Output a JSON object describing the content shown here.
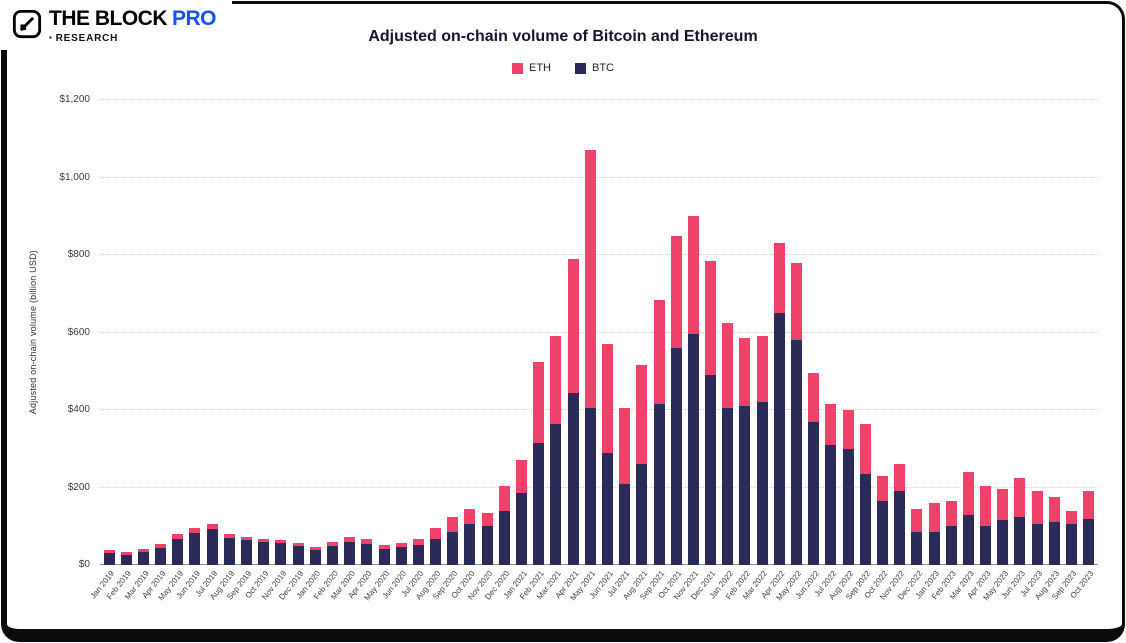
{
  "brand": {
    "name": "THE BLOCK",
    "pro": "PRO",
    "research_bullet": "▪",
    "research": "RESEARCH"
  },
  "legend": [
    {
      "label": "ETH",
      "color": "#ef426b"
    },
    {
      "label": "BTC",
      "color": "#2b2b59"
    }
  ],
  "chart_data": {
    "type": "bar",
    "stacked": true,
    "title": "Adjusted on-chain volume of Bitcoin and Ethereum",
    "ylabel": "Adjusted on-chain volume (billion USD)",
    "unit": "billion USD",
    "ylim": [
      0,
      1200
    ],
    "grid": "horizontal-dotted",
    "legend_position": "top-center",
    "yticks": [
      {
        "label": "$0",
        "value": 0
      },
      {
        "label": "$200",
        "value": 200
      },
      {
        "label": "$400",
        "value": 400
      },
      {
        "label": "$600",
        "value": 600
      },
      {
        "label": "$800",
        "value": 800
      },
      {
        "label": "$1,000",
        "value": 1000
      },
      {
        "label": "$1,200",
        "value": 1200
      }
    ],
    "categories": [
      "Jan 2019",
      "Feb 2019",
      "Mar 2019",
      "Apr 2019",
      "May 2019",
      "Jun 2019",
      "Jul 2019",
      "Aug 2019",
      "Sep 2019",
      "Oct 2019",
      "Nov 2019",
      "Dec 2019",
      "Jan 2020",
      "Feb 2020",
      "Mar 2020",
      "Apr 2020",
      "May 2020",
      "Jun 2020",
      "Jul 2020",
      "Aug 2020",
      "Sep 2020",
      "Oct 2020",
      "Nov 2020",
      "Dec 2020",
      "Jan 2021",
      "Feb 2021",
      "Mar 2021",
      "Apr 2021",
      "May 2021",
      "Jun 2021",
      "Jul 2021",
      "Aug 2021",
      "Sep 2021",
      "Oct 2021",
      "Nov 2021",
      "Dec 2021",
      "Jan 2022",
      "Feb 2022",
      "Mar 2022",
      "Apr 2022",
      "May 2022",
      "Jun 2022",
      "Jul 2022",
      "Aug 2022",
      "Sep 2022",
      "Oct 2022",
      "Nov 2022",
      "Dec 2022",
      "Jan 2023",
      "Feb 2023",
      "Mar 2023",
      "Apr 2023",
      "May 2023",
      "Jun 2023",
      "Jul 2023",
      "Aug 2023",
      "Sep 2023",
      "Oct 2023"
    ],
    "series": [
      {
        "name": "BTC",
        "color": "#2b2b59",
        "values": [
          30,
          27,
          34,
          45,
          66,
          82,
          93,
          71,
          64,
          59,
          56,
          49,
          39,
          50,
          59,
          53,
          42,
          46,
          52,
          68,
          85,
          105,
          100,
          140,
          185,
          315,
          365,
          445,
          405,
          290,
          210,
          260,
          415,
          560,
          595,
          490,
          405,
          410,
          420,
          650,
          580,
          370,
          310,
          300,
          235,
          165,
          190,
          85,
          85,
          100,
          130,
          100,
          115,
          125,
          105,
          110,
          105,
          120
        ]
      },
      {
        "name": "ETH",
        "color": "#ef426b",
        "values": [
          8,
          7,
          8,
          10,
          14,
          13,
          12,
          9,
          8,
          7,
          8,
          7,
          7,
          10,
          13,
          13,
          10,
          12,
          16,
          27,
          40,
          40,
          35,
          65,
          85,
          210,
          225,
          345,
          665,
          280,
          195,
          255,
          270,
          290,
          305,
          295,
          220,
          175,
          170,
          180,
          200,
          125,
          105,
          100,
          130,
          65,
          70,
          60,
          75,
          65,
          110,
          105,
          80,
          100,
          85,
          65,
          35,
          70
        ]
      }
    ]
  }
}
